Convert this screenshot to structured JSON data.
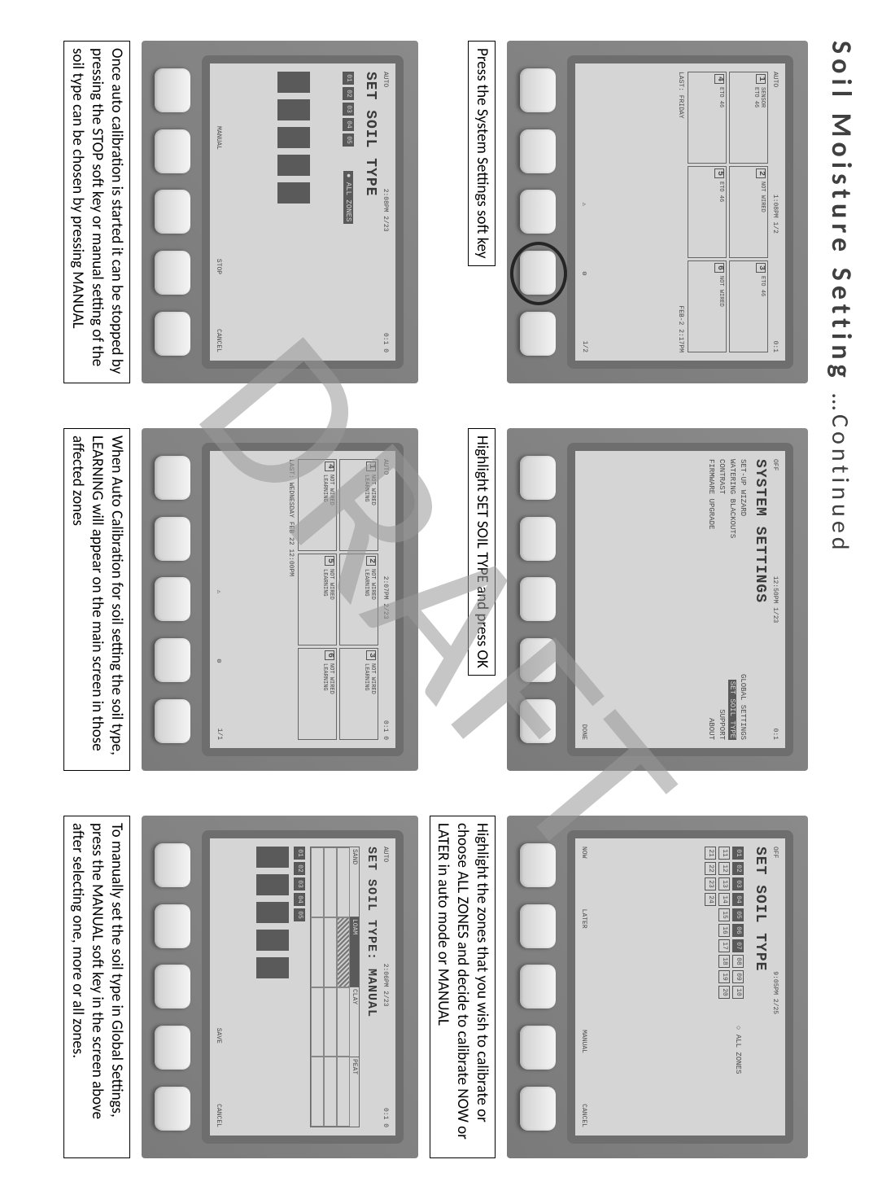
{
  "title_main": "Soil Moisture Setting",
  "title_cont": "…Continued",
  "watermark": "DRAFT",
  "devices": {
    "d1": {
      "topbar_left": "AUTO",
      "topbar_mid": "1:08PM 1/2",
      "topbar_right": "0:1",
      "zones": [
        {
          "n": "1",
          "a": "SENSOR",
          "b": "ETo 46",
          "c": "RUN"
        },
        {
          "n": "2",
          "a": "NOT WIRED",
          "b": "ETo 00",
          "c": ""
        },
        {
          "n": "3",
          "a": "",
          "b": "ETo 46",
          "c": "RUN"
        },
        {
          "n": "4",
          "a": "",
          "b": "ETo 46",
          "c": "RUN"
        },
        {
          "n": "5",
          "a": "",
          "b": "ETo 46",
          "c": "RUN"
        },
        {
          "n": "6",
          "a": "NOT WIRED",
          "b": "ETo 00",
          "c": ""
        }
      ],
      "status_left": "LAST: FRIDAY",
      "status_mid": "FEB-2  2:17PM",
      "bottombar": [
        "",
        "",
        "⚠",
        "⚙",
        "1/2"
      ]
    },
    "d2": {
      "topbar_left": "OFF",
      "topbar_mid": "12:50PM 1/23",
      "topbar_right": "0:1",
      "title": "SYSTEM SETTINGS",
      "items": [
        {
          "l": "SET-UP WIZARD",
          "r": "GLOBAL SETTINGS",
          "lsel": false,
          "rsel": false
        },
        {
          "l": "WATERING BLACKOUTS",
          "r": "SET SOIL TYPE",
          "lsel": false,
          "rsel": true
        },
        {
          "l": "CONTRAST",
          "r": "SUPPORT",
          "lsel": false,
          "rsel": false
        },
        {
          "l": "FIRMWARE UPGRADE",
          "r": "ABOUT",
          "lsel": false,
          "rsel": false
        }
      ],
      "bottombar": [
        "",
        "",
        "",
        "",
        "DONE"
      ]
    },
    "d3": {
      "topbar_left": "OFF",
      "topbar_mid": "9:05PM 2/25",
      "topbar_right": "",
      "title": "SET SOIL TYPE",
      "all_zones_label": "ALL ZONES",
      "zone_nums_sel": [
        "01",
        "02",
        "03",
        "04",
        "05",
        "06",
        "07"
      ],
      "zone_nums_rest": [
        "08",
        "09",
        "10",
        "11",
        "12",
        "13",
        "14",
        "15",
        "16",
        "17",
        "18",
        "19",
        "20",
        "21",
        "22",
        "23",
        "24"
      ],
      "bottombar": [
        "NOW",
        "LATER",
        "",
        "MANUAL",
        "CANCEL"
      ]
    },
    "d4": {
      "topbar_left": "AUTO",
      "topbar_mid": "2:08PM 2/23",
      "topbar_right": "0:1  0",
      "title": "SET SOIL TYPE",
      "zone_nums_sel": [
        "01",
        "02",
        "03",
        "04",
        "05"
      ],
      "zone_nums_rest": [],
      "all_zones_label": "ALL ZONES",
      "bars": [
        40,
        40,
        40,
        40,
        40
      ],
      "bottombar": [
        "",
        "MANUAL",
        "",
        "STOP",
        "CANCEL"
      ]
    },
    "d5": {
      "topbar_left": "AUTO",
      "topbar_mid": "2:07PM 2/23",
      "topbar_right": "0:1  0",
      "zones": [
        {
          "n": "1",
          "a": "NOT WIRED",
          "b": "LEARNING",
          "c": ""
        },
        {
          "n": "2",
          "a": "NOT WIRED",
          "b": "LEARNING",
          "c": ""
        },
        {
          "n": "3",
          "a": "NOT WIRED",
          "b": "LEARNING",
          "c": ""
        },
        {
          "n": "4",
          "a": "NOT WIRED",
          "b": "LEARNING",
          "c": ""
        },
        {
          "n": "5",
          "a": "NOT WIRED",
          "b": "LEARNING",
          "c": ""
        },
        {
          "n": "6",
          "a": "NOT WIRED",
          "b": "LEARNING",
          "c": ""
        }
      ],
      "status_left": "LAST: WEDNESDAY FEB 22  12:00PM",
      "bottombar": [
        "",
        "",
        "⚠",
        "⚙",
        "1/1"
      ]
    },
    "d6": {
      "topbar_left": "AUTO",
      "topbar_mid": "2:06PM 2/23",
      "topbar_right": "0:1  0",
      "title": "SET SOIL TYPE: MANUAL",
      "soil_labels": [
        "SAND",
        "LOAM",
        "CLAY",
        "PEAT"
      ],
      "zone_nums_sel": [
        "01",
        "02",
        "03",
        "04",
        "05"
      ],
      "bars": [
        40,
        40,
        40,
        40,
        40
      ],
      "bottombar": [
        "",
        "",
        "",
        "SAVE",
        "CANCEL"
      ]
    }
  },
  "captions": {
    "c1": "Press the System Settings soft key",
    "c2": "Highlight SET SOIL TYPE and press OK",
    "c3": "Highlight the zones that you wish to calibrate or choose ALL ZONES and decide to calibrate NOW or LATER in auto mode or MANUAL",
    "c4": "Once auto calibration is started it can be stopped by pressing the STOP soft key or manual setting of the soil type can be chosen by pressing MANUAL",
    "c5": "When Auto Calibration for soil setting the soil type, LEARNING will appear on the main screen in those affected zones",
    "c6": "To manually set the soil type in Global Settings, press the MANUAL soft key in the screen above after selecting one, more or all zones."
  }
}
